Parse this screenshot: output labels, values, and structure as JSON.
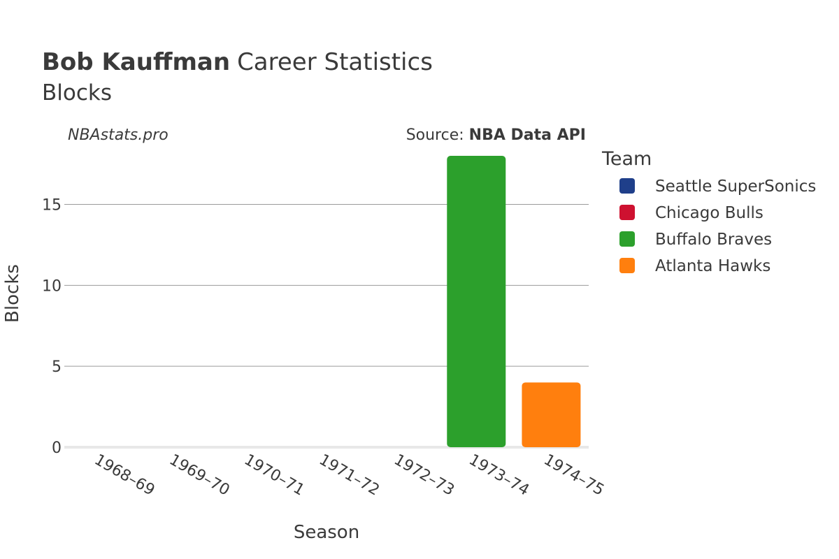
{
  "header": {
    "title_bold": "Bob Kauffman",
    "title_rest": "Career Statistics",
    "subtitle": "Blocks",
    "credit": "NBAstats.pro",
    "source_prefix": "Source: ",
    "source_name": "NBA Data API"
  },
  "legend": {
    "title": "Team",
    "items": [
      {
        "label": "Seattle SuperSonics",
        "color": "#1f3f8a"
      },
      {
        "label": "Chicago Bulls",
        "color": "#ce1130"
      },
      {
        "label": "Buffalo Braves",
        "color": "#2ca02c"
      },
      {
        "label": "Atlanta Hawks",
        "color": "#ff7f0e"
      }
    ]
  },
  "chart_data": {
    "type": "bar",
    "xlabel": "Season",
    "ylabel": "Blocks",
    "ylim": [
      0,
      18
    ],
    "yticks": [
      0,
      5,
      10,
      15
    ],
    "grid": true,
    "legend_position": "right",
    "categories": [
      "1968–69",
      "1969–70",
      "1970–71",
      "1971–72",
      "1972–73",
      "1973–74",
      "1974–75"
    ],
    "series": [
      {
        "name": "Seattle SuperSonics",
        "color": "#1f3f8a",
        "values": [
          0,
          0,
          0,
          null,
          null,
          null,
          null
        ]
      },
      {
        "name": "Chicago Bulls",
        "color": "#ce1130",
        "values": [
          null,
          null,
          null,
          0,
          0,
          null,
          null
        ]
      },
      {
        "name": "Buffalo Braves",
        "color": "#2ca02c",
        "values": [
          null,
          null,
          null,
          null,
          null,
          18,
          null
        ]
      },
      {
        "name": "Atlanta Hawks",
        "color": "#ff7f0e",
        "values": [
          null,
          null,
          null,
          null,
          null,
          null,
          4
        ]
      }
    ]
  }
}
